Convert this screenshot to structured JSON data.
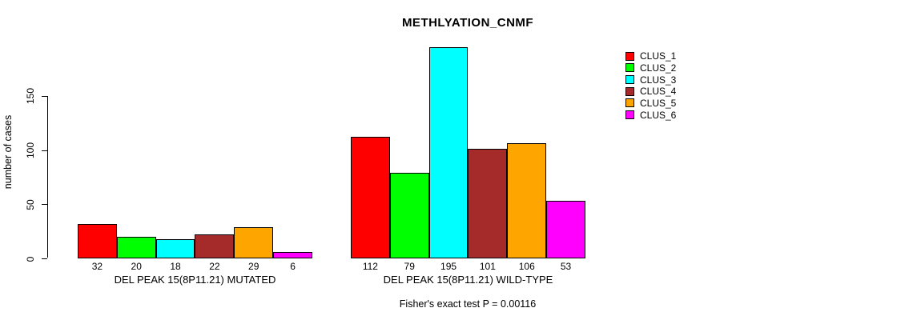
{
  "page": {
    "background": "#FFFFFF"
  },
  "chart_data": {
    "type": "bar",
    "title": "METHLYATION_CNMF",
    "ylabel": "number of cases",
    "xlabel": "",
    "ylim": [
      0,
      195
    ],
    "yticks": [
      0,
      50,
      100,
      150
    ],
    "grid": false,
    "legend_position": "top-right",
    "bar_border_color": "#000000",
    "clusters": [
      {
        "name": "CLUS_1",
        "color": "#FF0000"
      },
      {
        "name": "CLUS_2",
        "color": "#00FF00"
      },
      {
        "name": "CLUS_3",
        "color": "#00FFFF"
      },
      {
        "name": "CLUS_4",
        "color": "#A52A2A"
      },
      {
        "name": "CLUS_5",
        "color": "#FFA500"
      },
      {
        "name": "CLUS_6",
        "color": "#FF00FF"
      }
    ],
    "groups": [
      {
        "label": "DEL PEAK 15(8P11.21) MUTATED",
        "values": [
          32,
          20,
          18,
          22,
          29,
          6
        ]
      },
      {
        "label": "DEL PEAK 15(8P11.21) WILD-TYPE",
        "values": [
          112,
          79,
          195,
          101,
          106,
          53
        ]
      }
    ],
    "annotation": "Fisher's exact test P = 0.00116"
  }
}
